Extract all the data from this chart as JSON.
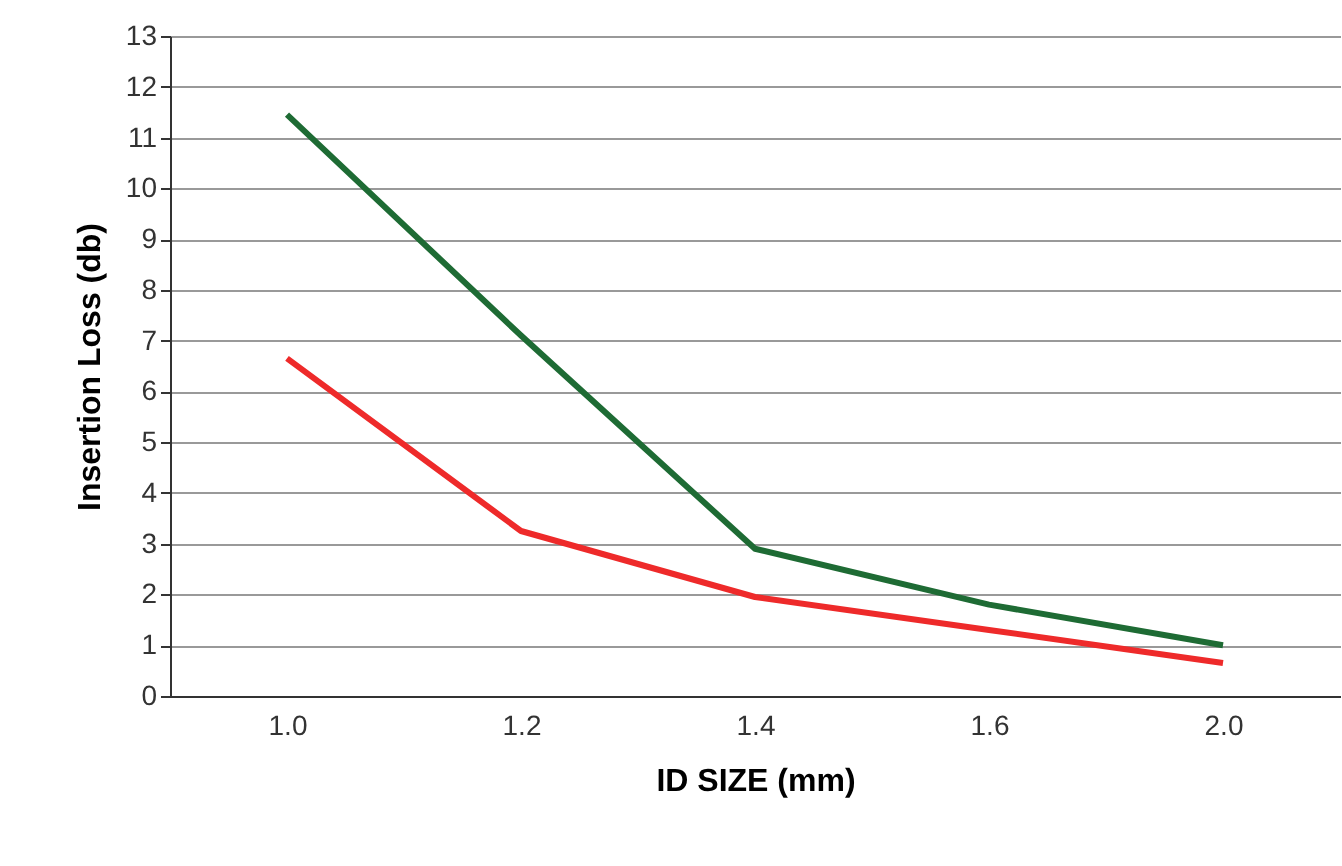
{
  "chart_data": {
    "type": "line",
    "xlabel": "ID SIZE (mm)",
    "ylabel": "Insertion Loss (db)",
    "categories": [
      "1.0",
      "1.2",
      "1.4",
      "1.6",
      "2.0"
    ],
    "series": [
      {
        "color": "#1e6b34",
        "values": [
          11.45,
          7.1,
          2.9,
          1.8,
          1.0
        ]
      },
      {
        "color": "#ee2a2a",
        "values": [
          6.65,
          3.25,
          1.95,
          1.3,
          0.65
        ]
      }
    ],
    "ylim": [
      0,
      13
    ],
    "yticks": [
      0,
      1,
      2,
      3,
      4,
      5,
      6,
      7,
      8,
      9,
      10,
      11,
      12,
      13
    ],
    "grid": "y",
    "marker": "none",
    "line_style": "solid"
  }
}
